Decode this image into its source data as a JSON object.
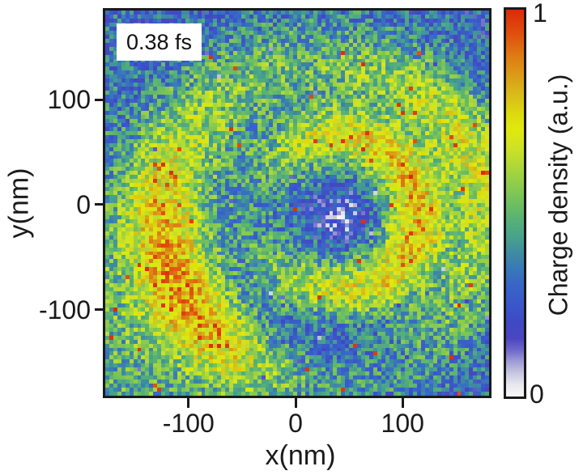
{
  "figure": {
    "time_label": "0.38 fs",
    "colorbar_max": "1",
    "colorbar_min": "0",
    "colorbar_label": "Charge density (a.u.)"
  },
  "chart_data": {
    "type": "heatmap",
    "title": "",
    "xlabel": "x(nm)",
    "ylabel": "y(nm)",
    "x_ticks": [
      -100,
      0,
      100
    ],
    "y_ticks": [
      100,
      0,
      -100
    ],
    "x_range": [
      -180,
      183
    ],
    "y_range": [
      -184,
      187
    ],
    "grid": {
      "cols": 96,
      "rows": 96
    },
    "colorbar": {
      "label": "Charge density (a.u.)",
      "min": 0,
      "max": 1,
      "stops": [
        [
          0.0,
          "#f8f8f8"
        ],
        [
          0.03,
          "#e8e8ee"
        ],
        [
          0.06,
          "#c9c7e0"
        ],
        [
          0.09,
          "#a09dd6"
        ],
        [
          0.12,
          "#6f68ca"
        ],
        [
          0.15,
          "#4a46c0"
        ],
        [
          0.19,
          "#3f49c4"
        ],
        [
          0.24,
          "#3a57cb"
        ],
        [
          0.29,
          "#3866c6"
        ],
        [
          0.33,
          "#3878b8"
        ],
        [
          0.37,
          "#3f8ba2"
        ],
        [
          0.41,
          "#47a18c"
        ],
        [
          0.46,
          "#58b273"
        ],
        [
          0.52,
          "#7cc556"
        ],
        [
          0.58,
          "#a4d43e"
        ],
        [
          0.64,
          "#cce226"
        ],
        [
          0.69,
          "#e0e90e"
        ],
        [
          0.73,
          "#ddda10"
        ],
        [
          0.78,
          "#d9bb19"
        ],
        [
          0.83,
          "#db9b19"
        ],
        [
          0.88,
          "#dd7c13"
        ],
        [
          0.93,
          "#e0540e"
        ],
        [
          1.0,
          "#dc2a08"
        ]
      ]
    },
    "pattern": {
      "description": "Noisy single-armed spiral charge-density wave: dark vortex core near (40,-10) nm, bright C-shaped inner ring (open to the west), outer spiral arms east and west, bright lobe in the lower-left, speckle noise with scattered hot (red) and cold (lavender/white) pixels.",
      "seed": 1234567,
      "base": 0.36,
      "noise": 0.16,
      "center": [
        40,
        -10
      ],
      "inner_ring": {
        "radius": 75,
        "sigma_r": 20,
        "amp": 0.32,
        "gap_center_deg": 180,
        "gap_sigma_deg": 33,
        "gap_depth": 0.92,
        "east_boost": 0.25
      },
      "outer_arm_east": {
        "radius": 140,
        "sigma_r": 22,
        "amp": 0.3,
        "theta_deg": 25,
        "sigma_deg": 48
      },
      "outer_arm_west": {
        "radius": 165,
        "sigma_r": 28,
        "amp": 0.3,
        "theta_deg": 195,
        "sigma_deg": 50
      },
      "bottom_left_lobe": {
        "amp": 0.24,
        "theta_deg": 225,
        "sigma_deg": 42,
        "r_min": 135
      },
      "south_dip": {
        "amp": -0.2,
        "theta_deg": 262,
        "sigma_deg": 26,
        "r_min": 95
      },
      "corner_dip": {
        "amp": -0.1,
        "r_min": 195
      },
      "core": {
        "depth": 0.22,
        "radius": 34
      },
      "specks": {
        "hot_base_p": 0.004,
        "hot_slope": 0.25,
        "hot_v_threshold": 0.58,
        "hot_value": 0.93,
        "cold_p": 0.006,
        "cold_value": 0.04
      }
    }
  }
}
